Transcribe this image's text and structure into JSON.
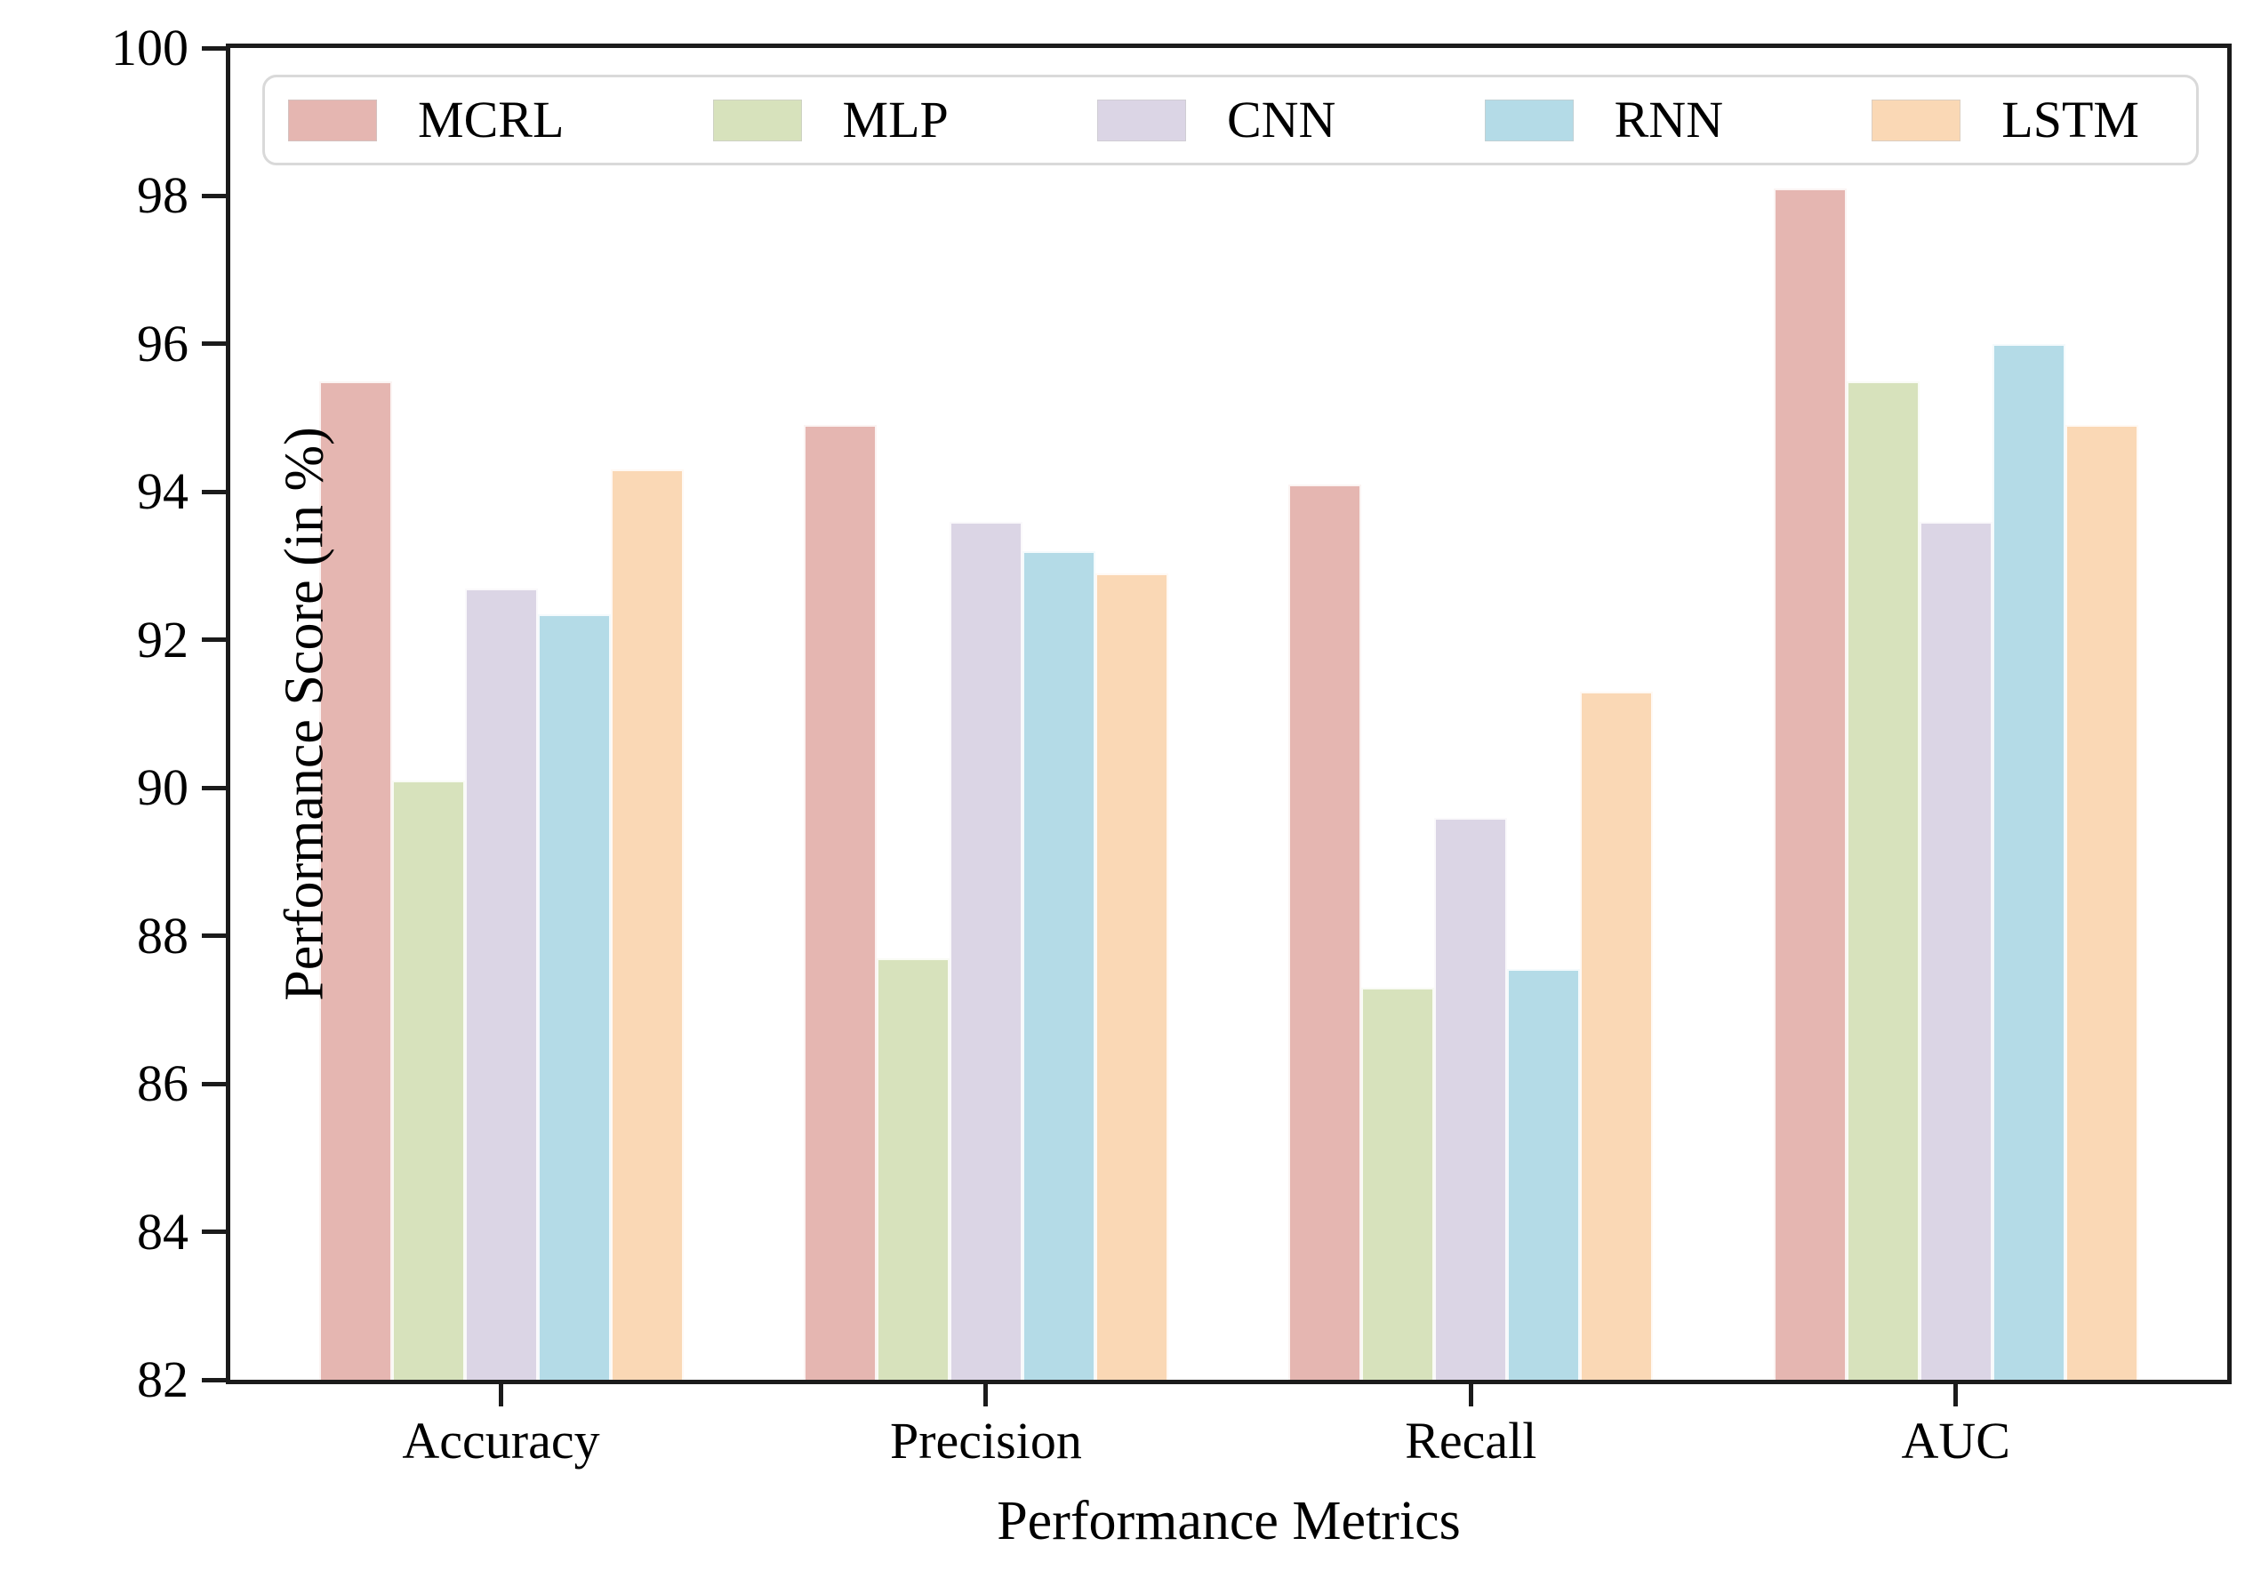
{
  "chart_data": {
    "type": "bar",
    "title": "",
    "xlabel": "Performance Metrics",
    "ylabel": "Performance Score (in %)",
    "categories": [
      "Accuracy",
      "Precision",
      "Recall",
      "AUC"
    ],
    "series": [
      {
        "name": "MCRL",
        "color": "#e5b6b1",
        "values": [
          95.5,
          94.9,
          94.1,
          98.1
        ]
      },
      {
        "name": "MLP",
        "color": "#d7e2bc",
        "values": [
          90.1,
          87.7,
          87.3,
          95.5
        ]
      },
      {
        "name": "CNN",
        "color": "#dbd5e5",
        "values": [
          92.7,
          93.6,
          89.6,
          93.6
        ]
      },
      {
        "name": "RNN",
        "color": "#b4dbe7",
        "values": [
          92.35,
          93.2,
          87.55,
          96.0
        ]
      },
      {
        "name": "LSTM",
        "color": "#fad8b5",
        "values": [
          94.3,
          92.9,
          91.3,
          94.9
        ]
      }
    ],
    "ylim": [
      82,
      100
    ],
    "yticks": [
      82,
      84,
      86,
      88,
      90,
      92,
      94,
      96,
      98,
      100
    ],
    "grid": false,
    "legend_position": "top",
    "axis_color": "#1b1b1b",
    "legend_border_color": "#d9d9d9",
    "background_color": "#ffffff"
  }
}
